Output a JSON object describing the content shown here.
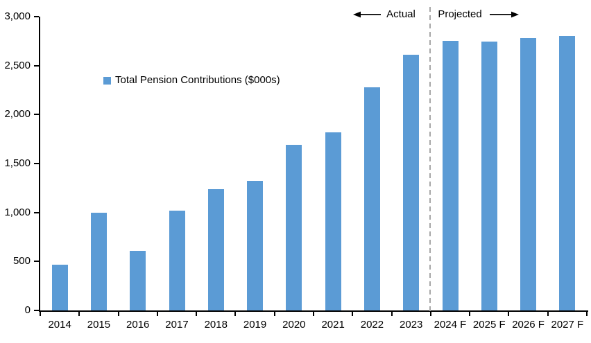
{
  "header": {
    "actual_label": "Actual",
    "projected_label": "Projected"
  },
  "legend": {
    "label": "Total Pension Contributions ($000s)",
    "marker_color": "#5B9BD5"
  },
  "chart_data": {
    "type": "bar",
    "title": "",
    "series_name": "Total Pension Contributions ($000s)",
    "categories": [
      "2014",
      "2015",
      "2016",
      "2017",
      "2018",
      "2019",
      "2020",
      "2021",
      "2022",
      "2023",
      "2024 F",
      "2025 F",
      "2026 F",
      "2027 F"
    ],
    "values": [
      470,
      995,
      610,
      1020,
      1235,
      1320,
      1690,
      1815,
      2280,
      2610,
      2755,
      2745,
      2780,
      2800
    ],
    "xlabel": "",
    "ylabel": "",
    "ylim": [
      0,
      3000
    ],
    "ytick_step": 500,
    "ytick_labels": [
      "0",
      "500",
      "1,000",
      "1,500",
      "2,000",
      "2,500",
      "3,000"
    ],
    "grid": false,
    "legend_position": "inside-upper-left",
    "bar_color": "#5B9BD5",
    "axis_color": "#000000",
    "divider_color": "#A6A6A6",
    "divider_after_category": "2023",
    "divider_after_index": 9,
    "annotation_left_of_divider": "Actual",
    "annotation_right_of_divider": "Projected"
  }
}
